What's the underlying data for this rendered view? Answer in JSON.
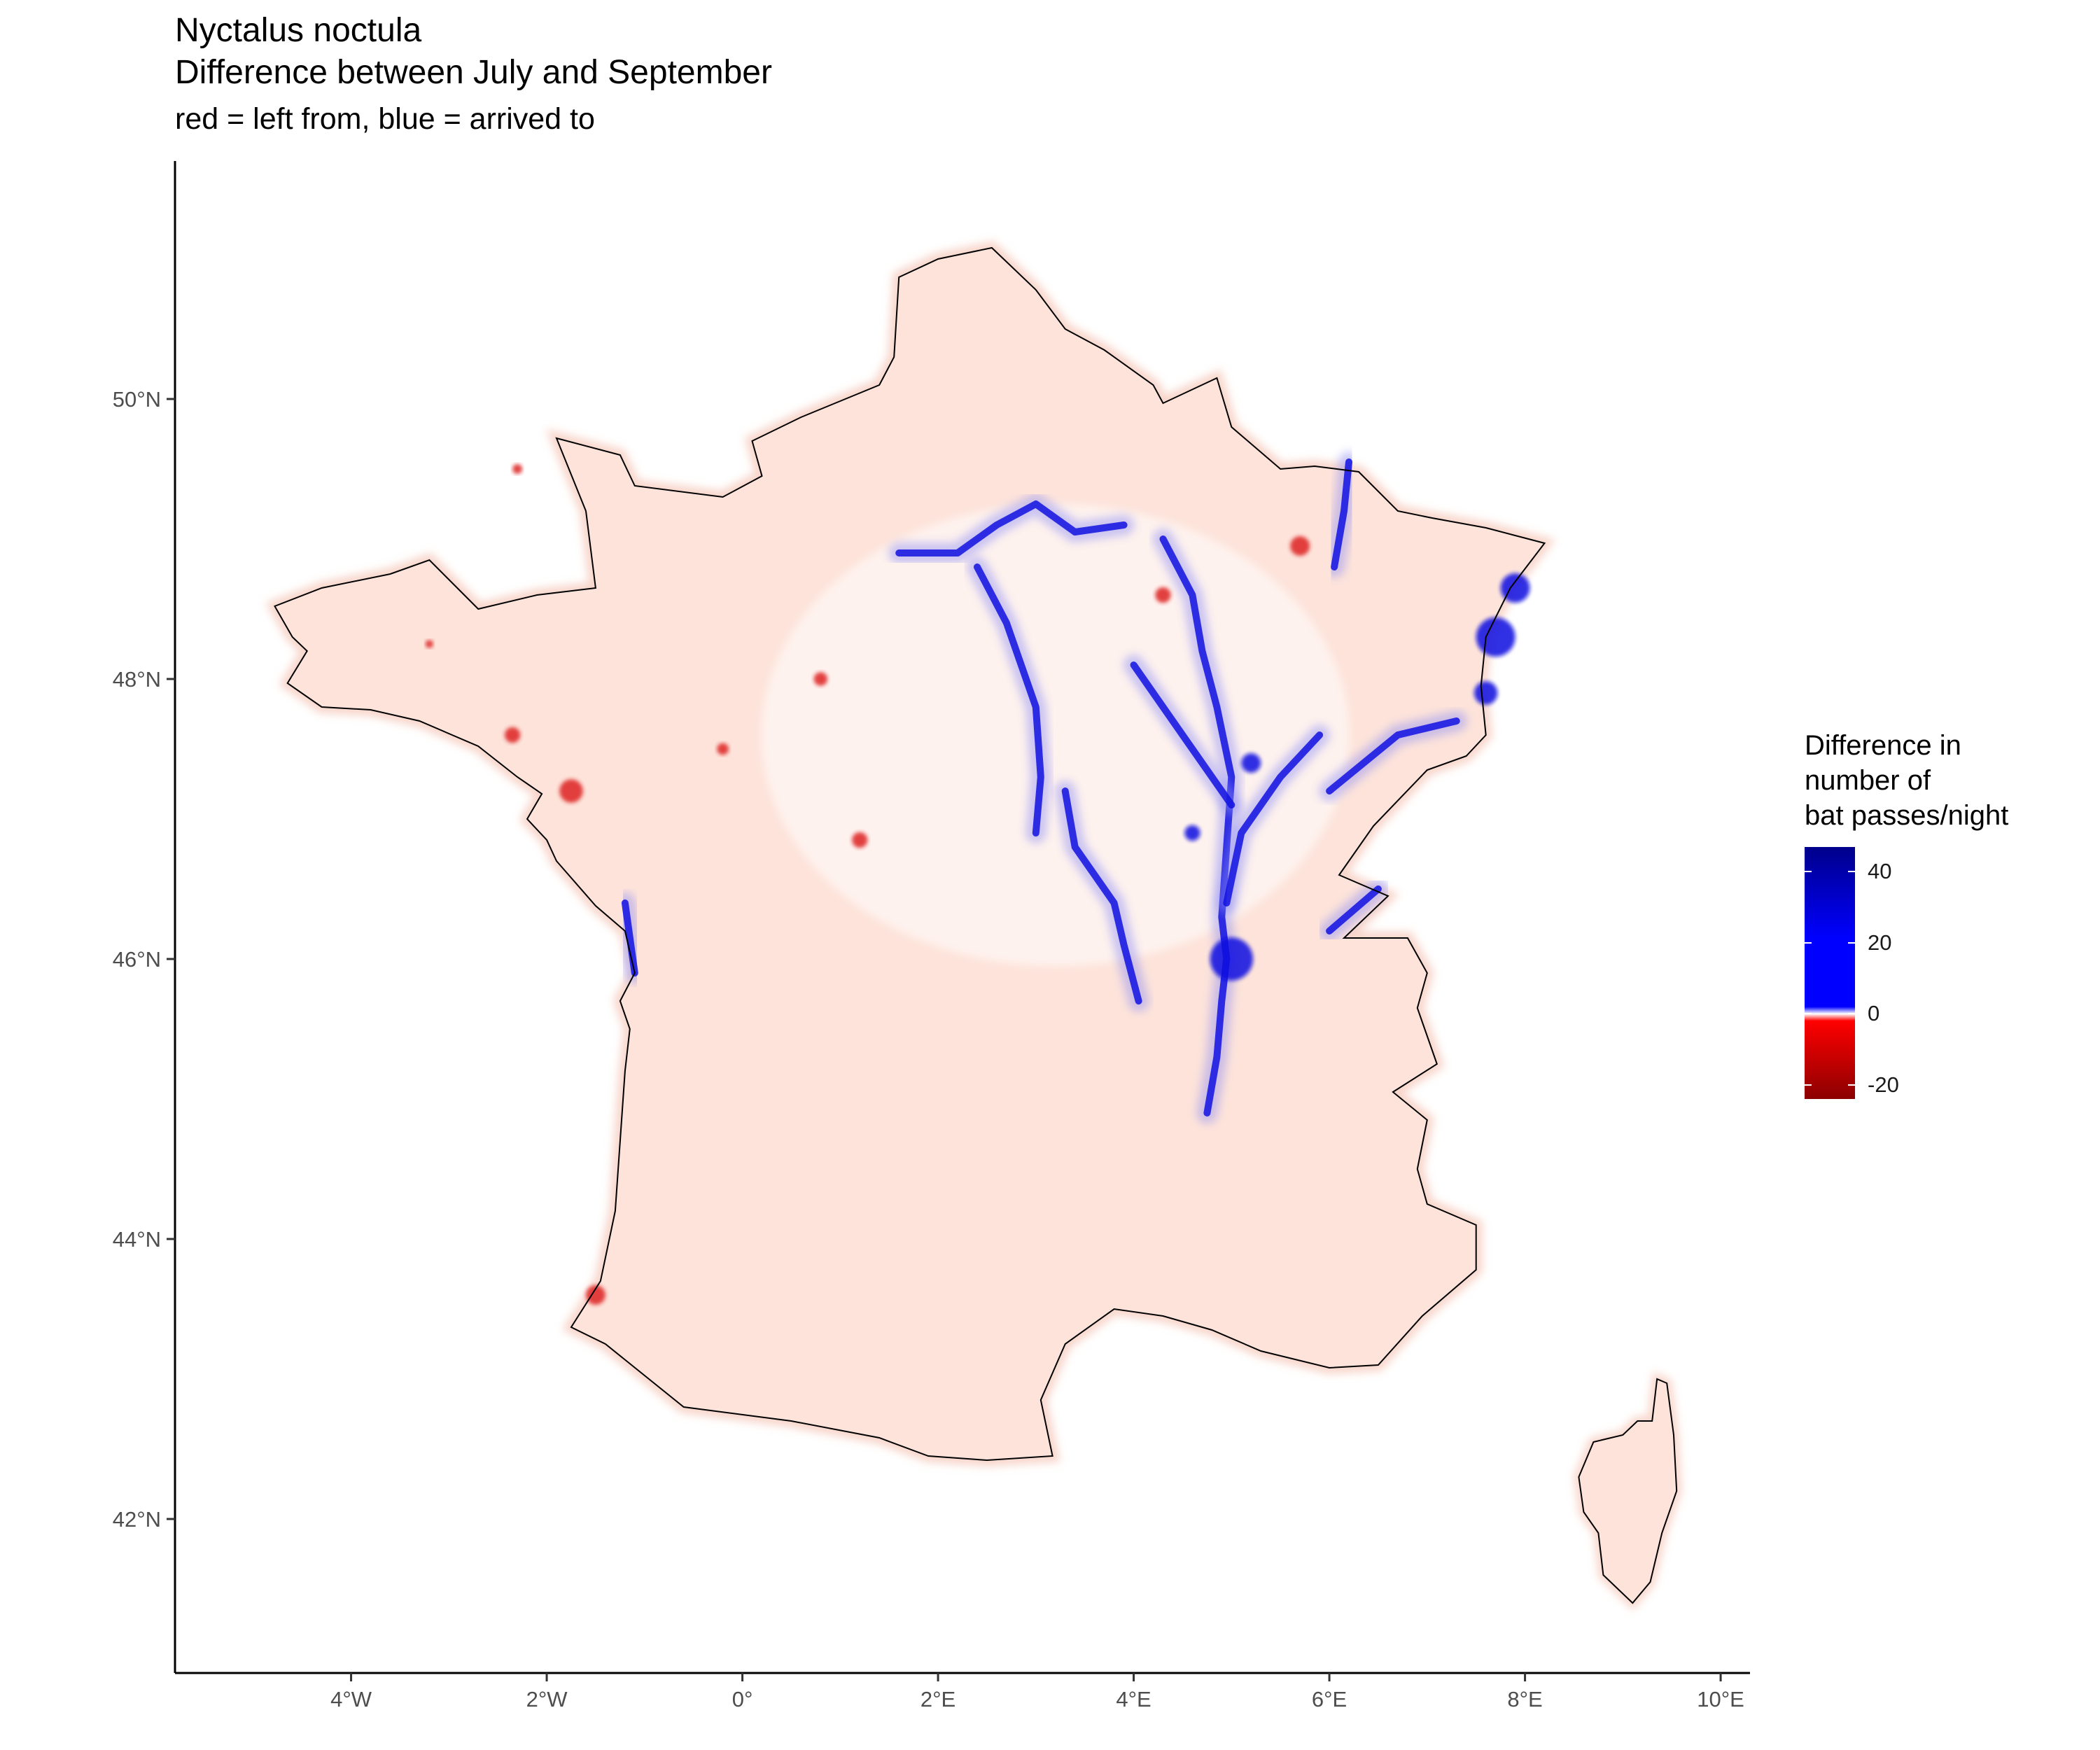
{
  "title": {
    "line1": "Nyctalus noctula",
    "line2": "Difference between July and September"
  },
  "subtitle": "red = left from, blue = arrived to",
  "axes": {
    "x_ticks": [
      {
        "value": -4,
        "label": "4°W"
      },
      {
        "value": -2,
        "label": "2°W"
      },
      {
        "value": 0,
        "label": "0°"
      },
      {
        "value": 2,
        "label": "2°E"
      },
      {
        "value": 4,
        "label": "4°E"
      },
      {
        "value": 6,
        "label": "6°E"
      },
      {
        "value": 8,
        "label": "8°E"
      },
      {
        "value": 10,
        "label": "10°E"
      }
    ],
    "y_ticks": [
      {
        "value": 42,
        "label": "42°N"
      },
      {
        "value": 44,
        "label": "44°N"
      },
      {
        "value": 46,
        "label": "46°N"
      },
      {
        "value": 48,
        "label": "48°N"
      },
      {
        "value": 50,
        "label": "50°N"
      }
    ],
    "xlim": [
      -5.8,
      10.3
    ],
    "ylim": [
      40.9,
      51.7
    ]
  },
  "legend": {
    "title_lines": [
      "Difference in",
      "number of",
      "bat passes/night"
    ],
    "range": [
      -24,
      47
    ],
    "ticks": [
      {
        "value": 40,
        "label": "40"
      },
      {
        "value": 20,
        "label": "20"
      },
      {
        "value": 0,
        "label": "0"
      },
      {
        "value": -20,
        "label": "-20"
      }
    ],
    "colors": {
      "high": "#00008b",
      "mid_high": "#0000ff",
      "zero": "#ffffff",
      "mid_low": "#ff0000",
      "low": "#8b0000"
    }
  },
  "colors": {
    "land": "#fde3da",
    "coast": "#000000",
    "arrived": "#1010e0",
    "left": "#dd2020"
  },
  "map": {
    "france_outline": [
      [
        2.55,
        51.08
      ],
      [
        2.0,
        51.0
      ],
      [
        1.6,
        50.87
      ],
      [
        1.55,
        50.3
      ],
      [
        1.4,
        50.1
      ],
      [
        0.6,
        49.87
      ],
      [
        0.1,
        49.7
      ],
      [
        0.2,
        49.45
      ],
      [
        -0.2,
        49.3
      ],
      [
        -1.1,
        49.38
      ],
      [
        -1.25,
        49.6
      ],
      [
        -1.9,
        49.72
      ],
      [
        -1.6,
        49.2
      ],
      [
        -1.5,
        48.65
      ],
      [
        -2.1,
        48.6
      ],
      [
        -2.7,
        48.5
      ],
      [
        -3.2,
        48.85
      ],
      [
        -3.6,
        48.75
      ],
      [
        -4.3,
        48.65
      ],
      [
        -4.78,
        48.52
      ],
      [
        -4.6,
        48.3
      ],
      [
        -4.45,
        48.2
      ],
      [
        -4.65,
        47.97
      ],
      [
        -4.3,
        47.8
      ],
      [
        -3.8,
        47.78
      ],
      [
        -3.3,
        47.7
      ],
      [
        -2.7,
        47.52
      ],
      [
        -2.3,
        47.3
      ],
      [
        -2.05,
        47.18
      ],
      [
        -2.2,
        47.0
      ],
      [
        -2.0,
        46.85
      ],
      [
        -1.9,
        46.7
      ],
      [
        -1.5,
        46.38
      ],
      [
        -1.2,
        46.2
      ],
      [
        -1.1,
        45.9
      ],
      [
        -1.25,
        45.7
      ],
      [
        -1.15,
        45.5
      ],
      [
        -1.2,
        45.2
      ],
      [
        -1.25,
        44.7
      ],
      [
        -1.3,
        44.2
      ],
      [
        -1.45,
        43.7
      ],
      [
        -1.75,
        43.37
      ],
      [
        -1.4,
        43.25
      ],
      [
        -0.6,
        42.8
      ],
      [
        0.5,
        42.7
      ],
      [
        1.4,
        42.58
      ],
      [
        1.9,
        42.45
      ],
      [
        2.5,
        42.42
      ],
      [
        3.17,
        42.45
      ],
      [
        3.05,
        42.85
      ],
      [
        3.3,
        43.25
      ],
      [
        3.8,
        43.5
      ],
      [
        4.3,
        43.45
      ],
      [
        4.8,
        43.35
      ],
      [
        5.3,
        43.2
      ],
      [
        6.0,
        43.08
      ],
      [
        6.5,
        43.1
      ],
      [
        6.95,
        43.45
      ],
      [
        7.5,
        43.78
      ],
      [
        7.5,
        44.1
      ],
      [
        7.0,
        44.25
      ],
      [
        6.9,
        44.5
      ],
      [
        7.0,
        44.85
      ],
      [
        6.65,
        45.05
      ],
      [
        7.1,
        45.25
      ],
      [
        6.9,
        45.65
      ],
      [
        7.0,
        45.9
      ],
      [
        6.8,
        46.15
      ],
      [
        6.15,
        46.15
      ],
      [
        6.6,
        46.45
      ],
      [
        6.1,
        46.6
      ],
      [
        6.45,
        46.95
      ],
      [
        7.0,
        47.35
      ],
      [
        7.4,
        47.45
      ],
      [
        7.6,
        47.6
      ],
      [
        7.55,
        47.95
      ],
      [
        7.6,
        48.3
      ],
      [
        7.85,
        48.65
      ],
      [
        8.2,
        48.97
      ],
      [
        7.6,
        49.08
      ],
      [
        7.05,
        49.15
      ],
      [
        6.7,
        49.2
      ],
      [
        6.3,
        49.48
      ],
      [
        5.85,
        49.52
      ],
      [
        5.5,
        49.5
      ],
      [
        5.0,
        49.8
      ],
      [
        4.85,
        50.15
      ],
      [
        4.3,
        49.97
      ],
      [
        4.2,
        50.1
      ],
      [
        3.7,
        50.35
      ],
      [
        3.3,
        50.5
      ],
      [
        3.0,
        50.78
      ],
      [
        2.55,
        51.08
      ]
    ],
    "corsica_outline": [
      [
        9.45,
        42.97
      ],
      [
        9.35,
        43.0
      ],
      [
        9.3,
        42.7
      ],
      [
        9.15,
        42.7
      ],
      [
        9.0,
        42.6
      ],
      [
        8.7,
        42.55
      ],
      [
        8.55,
        42.3
      ],
      [
        8.6,
        42.05
      ],
      [
        8.75,
        41.9
      ],
      [
        8.8,
        41.6
      ],
      [
        9.1,
        41.4
      ],
      [
        9.28,
        41.55
      ],
      [
        9.4,
        41.9
      ],
      [
        9.55,
        42.2
      ],
      [
        9.52,
        42.6
      ],
      [
        9.45,
        42.97
      ]
    ],
    "blue_paths": [
      [
        [
          4.3,
          49.0
        ],
        [
          4.6,
          48.6
        ],
        [
          4.7,
          48.2
        ],
        [
          4.85,
          47.8
        ],
        [
          5.0,
          47.3
        ],
        [
          4.95,
          46.8
        ],
        [
          4.9,
          46.3
        ],
        [
          4.95,
          46.0
        ],
        [
          4.9,
          45.7
        ],
        [
          4.85,
          45.3
        ],
        [
          4.75,
          44.9
        ]
      ],
      [
        [
          5.9,
          47.6
        ],
        [
          5.5,
          47.3
        ],
        [
          5.1,
          46.9
        ],
        [
          4.95,
          46.4
        ]
      ],
      [
        [
          3.3,
          47.2
        ],
        [
          3.4,
          46.8
        ],
        [
          3.6,
          46.6
        ],
        [
          3.8,
          46.4
        ],
        [
          3.9,
          46.1
        ],
        [
          4.05,
          45.7
        ]
      ],
      [
        [
          1.6,
          48.9
        ],
        [
          2.2,
          48.9
        ],
        [
          2.6,
          49.1
        ],
        [
          3.0,
          49.25
        ],
        [
          3.4,
          49.05
        ],
        [
          3.9,
          49.1
        ]
      ],
      [
        [
          2.4,
          48.8
        ],
        [
          2.7,
          48.4
        ],
        [
          3.0,
          47.8
        ],
        [
          3.05,
          47.3
        ],
        [
          3.0,
          46.9
        ]
      ],
      [
        [
          6.2,
          49.55
        ],
        [
          6.15,
          49.2
        ],
        [
          6.05,
          48.8
        ]
      ],
      [
        [
          6.0,
          47.2
        ],
        [
          6.7,
          47.6
        ],
        [
          7.3,
          47.7
        ]
      ],
      [
        [
          6.0,
          46.2
        ],
        [
          6.5,
          46.5
        ]
      ],
      [
        [
          4.0,
          48.1
        ],
        [
          4.5,
          47.6
        ],
        [
          5.0,
          47.1
        ]
      ],
      [
        [
          -1.2,
          46.4
        ],
        [
          -1.1,
          45.9
        ]
      ]
    ],
    "blue_blobs": [
      [
        5.0,
        46.0,
        0.22
      ],
      [
        7.7,
        48.3,
        0.2
      ],
      [
        7.9,
        48.65,
        0.15
      ],
      [
        7.6,
        47.9,
        0.12
      ],
      [
        5.2,
        47.4,
        0.1
      ],
      [
        4.6,
        46.9,
        0.08
      ]
    ],
    "red_spots": [
      [
        -1.75,
        47.2,
        0.12
      ],
      [
        -2.35,
        47.6,
        0.08
      ],
      [
        -1.5,
        43.6,
        0.1
      ],
      [
        5.7,
        48.95,
        0.1
      ],
      [
        4.3,
        48.6,
        0.08
      ],
      [
        1.2,
        46.85,
        0.08
      ],
      [
        -0.2,
        47.5,
        0.06
      ],
      [
        0.8,
        48.0,
        0.07
      ],
      [
        -3.2,
        48.25,
        0.04
      ],
      [
        -2.3,
        49.5,
        0.05
      ]
    ]
  }
}
